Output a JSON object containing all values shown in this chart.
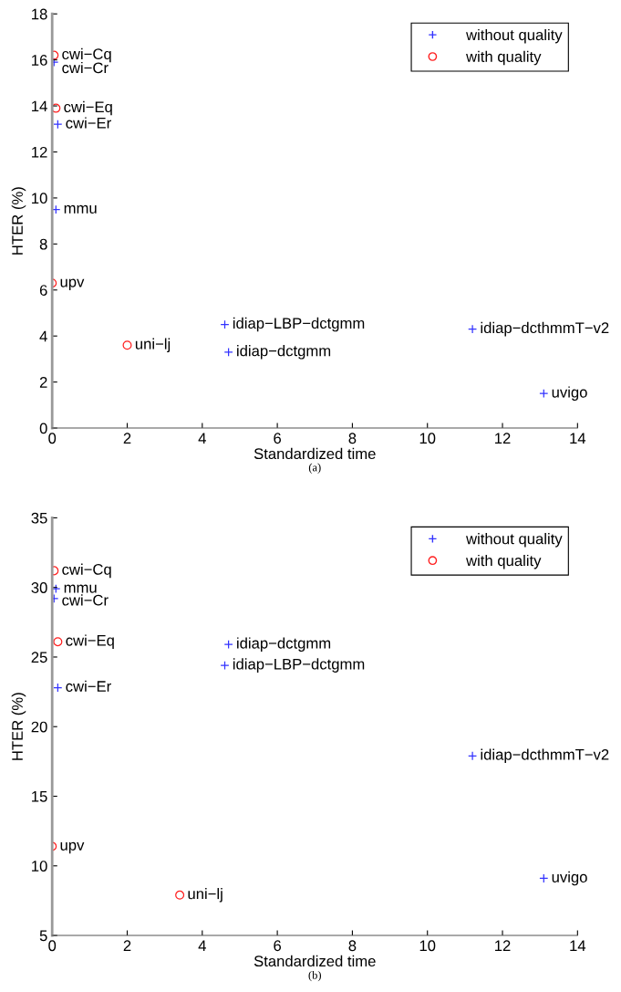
{
  "chart_data": [
    {
      "type": "scatter",
      "xlabel": "Standardized time",
      "ylabel": "HTER (%)",
      "xlim": [
        0,
        14
      ],
      "xticks": [
        0,
        2,
        4,
        6,
        8,
        10,
        12,
        14
      ],
      "ylim": [
        0,
        18
      ],
      "yticks": [
        0,
        2,
        4,
        6,
        8,
        10,
        12,
        14,
        16,
        18
      ],
      "grid": false,
      "legend": "top right",
      "series": [
        {
          "name": "without quality",
          "color": "#3333ff",
          "marker": "cross",
          "x": [
            0.05,
            0.15,
            0.1,
            4.6,
            4.7,
            11.2,
            13.1
          ],
          "values": [
            15.9,
            13.2,
            9.5,
            4.5,
            3.3,
            4.3,
            1.5
          ]
        },
        {
          "name": "with quality",
          "color": "#ff2020",
          "marker": "circle",
          "x": [
            0.05,
            0.1,
            0.0,
            2.0
          ],
          "values": [
            16.2,
            13.9,
            6.3,
            3.6
          ]
        }
      ],
      "annotations": [
        {
          "text": "cwi−Cq",
          "x": 0.05,
          "y": 16.2
        },
        {
          "text": "cwi−Cr",
          "x": 0.05,
          "y": 15.9
        },
        {
          "text": "cwi−Eq",
          "x": 0.1,
          "y": 13.9
        },
        {
          "text": "cwi−Er",
          "x": 0.15,
          "y": 13.2
        },
        {
          "text": "mmu",
          "x": 0.1,
          "y": 9.5
        },
        {
          "text": "upv",
          "x": 0.0,
          "y": 6.3
        },
        {
          "text": "uni−lj",
          "x": 2.0,
          "y": 3.6
        },
        {
          "text": "idiap−LBP−dctgmm",
          "x": 4.6,
          "y": 4.5
        },
        {
          "text": "idiap−dctgmm",
          "x": 4.7,
          "y": 3.3
        },
        {
          "text": "idiap−dcthmmT−v2",
          "x": 11.2,
          "y": 4.3
        },
        {
          "text": "uvigo",
          "x": 13.1,
          "y": 1.5
        },
        "(a)"
      ]
    },
    {
      "type": "scatter",
      "xlabel": "Standardized time",
      "ylabel": "HTER (%)",
      "xlim": [
        0,
        14
      ],
      "xticks": [
        0,
        2,
        4,
        6,
        8,
        10,
        12,
        14
      ],
      "ylim": [
        5,
        35
      ],
      "yticks": [
        5,
        10,
        15,
        20,
        25,
        30,
        35
      ],
      "grid": false,
      "legend": "top right",
      "series": [
        {
          "name": "without quality",
          "color": "#3333ff",
          "marker": "cross",
          "x": [
            0.1,
            0.05,
            0.15,
            4.7,
            4.6,
            11.2,
            13.1
          ],
          "values": [
            29.9,
            29.2,
            22.8,
            25.9,
            24.4,
            17.9,
            9.1
          ]
        },
        {
          "name": "with quality",
          "color": "#ff2020",
          "marker": "circle",
          "x": [
            0.05,
            0.15,
            0.0,
            3.4
          ],
          "values": [
            31.2,
            26.1,
            11.4,
            7.9
          ]
        }
      ],
      "annotations": [
        {
          "text": "cwi−Cq",
          "x": 0.05,
          "y": 31.2
        },
        {
          "text": "mmu",
          "x": 0.1,
          "y": 29.9
        },
        {
          "text": "cwi−Cr",
          "x": 0.05,
          "y": 29.2
        },
        {
          "text": "cwi−Eq",
          "x": 0.15,
          "y": 26.1
        },
        {
          "text": "cwi−Er",
          "x": 0.15,
          "y": 22.8
        },
        {
          "text": "idiap−dctgmm",
          "x": 4.7,
          "y": 25.9
        },
        {
          "text": "idiap−LBP−dctgmm",
          "x": 4.6,
          "y": 24.4
        },
        {
          "text": "upv",
          "x": 0.0,
          "y": 11.4
        },
        {
          "text": "uni−lj",
          "x": 3.4,
          "y": 7.9
        },
        {
          "text": "idiap−dcthmmT−v2",
          "x": 11.2,
          "y": 17.9
        },
        {
          "text": "uvigo",
          "x": 13.1,
          "y": 9.1
        },
        "(b)"
      ]
    }
  ]
}
